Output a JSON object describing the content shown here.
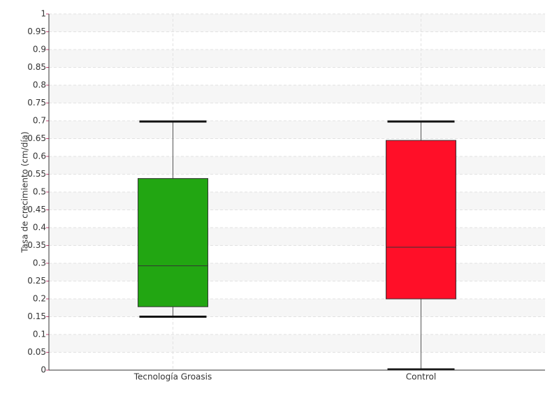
{
  "chart_data": {
    "type": "box",
    "y_label": "Tasa de crecimiento (cm/día)",
    "categories": [
      "Tecnología Groasis",
      "Control"
    ],
    "boxes": [
      {
        "min": 0.15,
        "q1": 0.178,
        "median": 0.293,
        "q3": 0.538,
        "max": 0.698,
        "color": "#22a612"
      },
      {
        "min": 0.002,
        "q1": 0.2,
        "median": 0.345,
        "q3": 0.645,
        "max": 0.698,
        "color": "#ff0f28"
      }
    ],
    "ylim": [
      0,
      1
    ],
    "yticks": [
      0,
      0.05,
      0.1,
      0.15,
      0.2,
      0.25,
      0.3,
      0.35,
      0.4,
      0.45,
      0.5,
      0.55,
      0.6,
      0.65,
      0.7,
      0.75,
      0.8,
      0.85,
      0.9,
      0.95,
      1
    ],
    "grid": true
  }
}
